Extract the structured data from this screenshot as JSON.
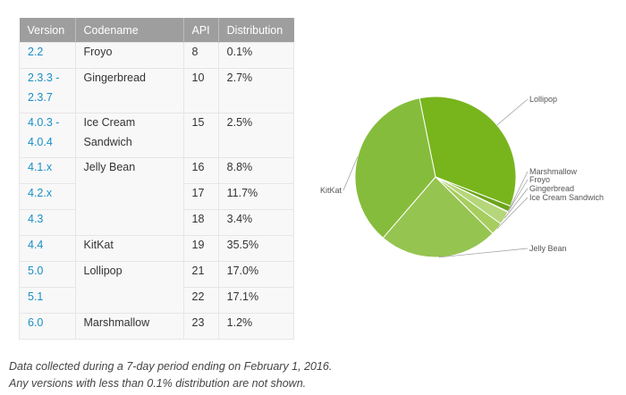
{
  "table": {
    "headers": [
      "Version",
      "Codename",
      "API",
      "Distribution"
    ],
    "groups": [
      {
        "codename": "Froyo",
        "rows": [
          {
            "version": "2.2",
            "api": "8",
            "distribution": "0.1%"
          }
        ]
      },
      {
        "codename": "Gingerbread",
        "rows": [
          {
            "version": "2.3.3 - 2.3.7",
            "api": "10",
            "distribution": "2.7%"
          }
        ]
      },
      {
        "codename": "Ice Cream Sandwich",
        "rows": [
          {
            "version": "4.0.3 - 4.0.4",
            "api": "15",
            "distribution": "2.5%"
          }
        ]
      },
      {
        "codename": "Jelly Bean",
        "rows": [
          {
            "version": "4.1.x",
            "api": "16",
            "distribution": "8.8%"
          },
          {
            "version": "4.2.x",
            "api": "17",
            "distribution": "11.7%"
          },
          {
            "version": "4.3",
            "api": "18",
            "distribution": "3.4%"
          }
        ]
      },
      {
        "codename": "KitKat",
        "rows": [
          {
            "version": "4.4",
            "api": "19",
            "distribution": "35.5%"
          }
        ]
      },
      {
        "codename": "Lollipop",
        "rows": [
          {
            "version": "5.0",
            "api": "21",
            "distribution": "17.0%"
          },
          {
            "version": "5.1",
            "api": "22",
            "distribution": "17.1%"
          }
        ]
      },
      {
        "codename": "Marshmallow",
        "rows": [
          {
            "version": "6.0",
            "api": "23",
            "distribution": "1.2%"
          }
        ]
      }
    ]
  },
  "notes": {
    "line1": "Data collected during a 7-day period ending on February 1, 2016.",
    "line2": "Any versions with less than 0.1% distribution are not shown."
  },
  "chart_data": {
    "type": "pie",
    "slices": [
      {
        "label": "Lollipop",
        "value": 34.1,
        "color": "#78b51d"
      },
      {
        "label": "Marshmallow",
        "value": 1.2,
        "color": "#6aa51a"
      },
      {
        "label": "Froyo",
        "value": 0.1,
        "color": "#c9e29c"
      },
      {
        "label": "Gingerbread",
        "value": 2.7,
        "color": "#b5d67a"
      },
      {
        "label": "Ice Cream Sandwich",
        "value": 2.5,
        "color": "#a6cd5e"
      },
      {
        "label": "Jelly Bean",
        "value": 23.9,
        "color": "#95c451"
      },
      {
        "label": "KitKat",
        "value": 35.5,
        "color": "#86bc3b"
      }
    ]
  }
}
